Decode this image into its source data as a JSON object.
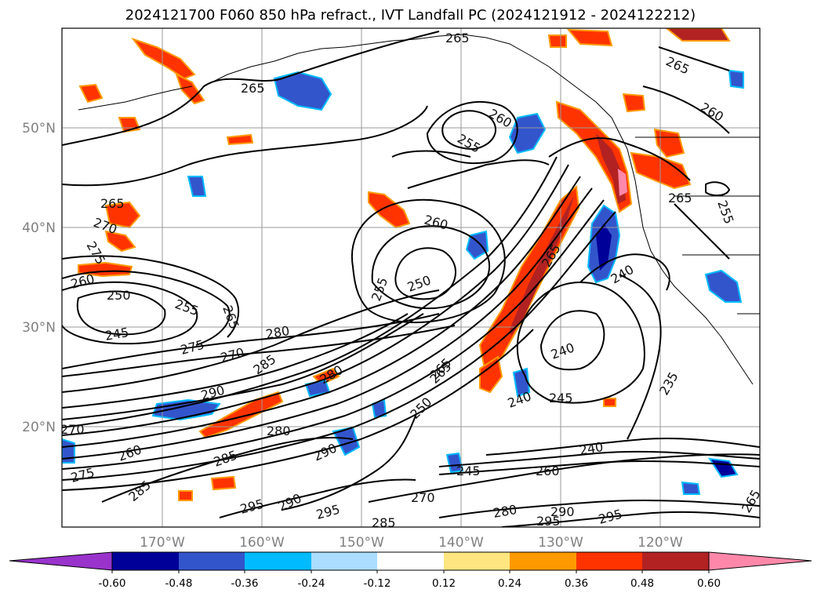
{
  "title": "2024121700 F060 850 hPa refract., IVT Landfall PC (2024121912 - 2024122212)",
  "map": {
    "lat_labels": [
      "50°N",
      "40°N",
      "30°N",
      "20°N"
    ],
    "lon_labels": [
      "170°W",
      "160°W",
      "150°W",
      "140°W",
      "130°W",
      "120°W"
    ],
    "grid": true,
    "background": "#ffffff",
    "contour_color": "#000000",
    "contour_labels": [
      "265",
      "265",
      "265",
      "260",
      "255",
      "260",
      "265",
      "265",
      "270",
      "275",
      "260",
      "250",
      "255",
      "265",
      "245",
      "275",
      "270",
      "280",
      "260",
      "255",
      "250",
      "285",
      "290",
      "280",
      "265",
      "265",
      "270",
      "260",
      "285",
      "280",
      "290",
      "275",
      "285",
      "295",
      "290",
      "295",
      "285",
      "270",
      "280",
      "295",
      "290",
      "295",
      "260",
      "245",
      "240",
      "245",
      "235",
      "240",
      "265",
      "250",
      "240",
      "240",
      "255",
      "265"
    ]
  },
  "colorbar": {
    "labels": [
      "-0.60",
      "-0.48",
      "-0.36",
      "-0.24",
      "-0.12",
      "0.12",
      "0.24",
      "0.36",
      "0.48",
      "0.60"
    ],
    "colors": [
      "#9933cc",
      "#000099",
      "#3355cc",
      "#00bbff",
      "#aaddff",
      "#ffffff",
      "#ffe680",
      "#ff9900",
      "#ff3300",
      "#b22222",
      "#ff88aa"
    ]
  }
}
